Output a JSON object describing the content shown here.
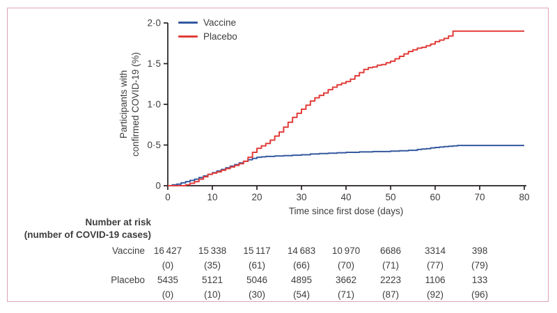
{
  "figure": {
    "border_color": "#dfa2b1",
    "background": "#ffffff",
    "axis_color": "#231f20",
    "text_color": "#3d3d3d"
  },
  "chart_data": {
    "type": "line",
    "subtype": "kaplan-meier-step",
    "title": "",
    "xlabel": "Time since first dose (days)",
    "ylabel_lines": [
      "Participants with",
      "confirmed COVID-19 (%)"
    ],
    "xlim": [
      0,
      80
    ],
    "ylim": [
      0,
      2.0
    ],
    "grid": false,
    "legend_position": "top-left-inside",
    "xticks": {
      "values": [
        0,
        10,
        20,
        30,
        40,
        50,
        60,
        70,
        80
      ],
      "labels": [
        "0",
        "10",
        "20",
        "30",
        "40",
        "50",
        "60",
        "70",
        "80"
      ]
    },
    "yticks": {
      "values": [
        0,
        0.5,
        1.0,
        1.5,
        2.0
      ],
      "labels": [
        "0",
        "0·5",
        "1·0",
        "1·5",
        "2·0"
      ]
    },
    "series": [
      {
        "name": "Vaccine",
        "color": "#33589e",
        "points": [
          [
            0,
            0
          ],
          [
            1,
            0.01
          ],
          [
            2,
            0.02
          ],
          [
            3,
            0.035
          ],
          [
            4,
            0.05
          ],
          [
            5,
            0.065
          ],
          [
            6,
            0.08
          ],
          [
            7,
            0.1
          ],
          [
            8,
            0.12
          ],
          [
            9,
            0.14
          ],
          [
            10,
            0.16
          ],
          [
            11,
            0.18
          ],
          [
            12,
            0.2
          ],
          [
            13,
            0.22
          ],
          [
            14,
            0.24
          ],
          [
            15,
            0.26
          ],
          [
            16,
            0.28
          ],
          [
            17,
            0.3
          ],
          [
            18,
            0.32
          ],
          [
            19,
            0.335
          ],
          [
            20,
            0.35
          ],
          [
            21,
            0.355
          ],
          [
            22,
            0.36
          ],
          [
            24,
            0.365
          ],
          [
            26,
            0.37
          ],
          [
            28,
            0.375
          ],
          [
            30,
            0.38
          ],
          [
            32,
            0.39
          ],
          [
            34,
            0.395
          ],
          [
            36,
            0.4
          ],
          [
            38,
            0.405
          ],
          [
            40,
            0.41
          ],
          [
            43,
            0.415
          ],
          [
            46,
            0.42
          ],
          [
            50,
            0.425
          ],
          [
            52,
            0.43
          ],
          [
            54,
            0.435
          ],
          [
            56,
            0.445
          ],
          [
            57,
            0.45
          ],
          [
            58,
            0.455
          ],
          [
            59,
            0.465
          ],
          [
            60,
            0.47
          ],
          [
            61,
            0.475
          ],
          [
            62,
            0.48
          ],
          [
            63,
            0.485
          ],
          [
            64,
            0.49
          ],
          [
            65,
            0.495
          ],
          [
            80,
            0.495
          ]
        ]
      },
      {
        "name": "Placebo",
        "color": "#e13c38",
        "points": [
          [
            0,
            0
          ],
          [
            4,
            0.01
          ],
          [
            5,
            0.03
          ],
          [
            6,
            0.05
          ],
          [
            7,
            0.08
          ],
          [
            8,
            0.11
          ],
          [
            9,
            0.14
          ],
          [
            10,
            0.155
          ],
          [
            11,
            0.17
          ],
          [
            12,
            0.19
          ],
          [
            13,
            0.21
          ],
          [
            14,
            0.23
          ],
          [
            15,
            0.25
          ],
          [
            16,
            0.27
          ],
          [
            17,
            0.3
          ],
          [
            18,
            0.35
          ],
          [
            19,
            0.41
          ],
          [
            20,
            0.46
          ],
          [
            21,
            0.49
          ],
          [
            22,
            0.52
          ],
          [
            23,
            0.56
          ],
          [
            24,
            0.61
          ],
          [
            25,
            0.66
          ],
          [
            26,
            0.72
          ],
          [
            27,
            0.78
          ],
          [
            28,
            0.84
          ],
          [
            29,
            0.89
          ],
          [
            30,
            0.94
          ],
          [
            31,
            0.99
          ],
          [
            32,
            1.04
          ],
          [
            33,
            1.08
          ],
          [
            34,
            1.11
          ],
          [
            35,
            1.14
          ],
          [
            36,
            1.18
          ],
          [
            37,
            1.21
          ],
          [
            38,
            1.24
          ],
          [
            39,
            1.26
          ],
          [
            40,
            1.28
          ],
          [
            41,
            1.31
          ],
          [
            42,
            1.35
          ],
          [
            43,
            1.39
          ],
          [
            44,
            1.43
          ],
          [
            45,
            1.45
          ],
          [
            46,
            1.46
          ],
          [
            47,
            1.48
          ],
          [
            48,
            1.49
          ],
          [
            49,
            1.51
          ],
          [
            50,
            1.53
          ],
          [
            51,
            1.56
          ],
          [
            52,
            1.59
          ],
          [
            53,
            1.62
          ],
          [
            54,
            1.65
          ],
          [
            55,
            1.67
          ],
          [
            56,
            1.69
          ],
          [
            57,
            1.7
          ],
          [
            58,
            1.72
          ],
          [
            59,
            1.74
          ],
          [
            60,
            1.77
          ],
          [
            61,
            1.79
          ],
          [
            62,
            1.81
          ],
          [
            63,
            1.84
          ],
          [
            64,
            1.9
          ],
          [
            80,
            1.9
          ]
        ]
      }
    ]
  },
  "risk_table": {
    "header_line1": "Number at risk",
    "header_line2": "(number of COVID-19 cases)",
    "time_points": [
      0,
      10,
      20,
      30,
      40,
      50,
      60,
      70
    ],
    "rows": [
      {
        "label": "Vaccine",
        "counts": [
          "16 427",
          "15 338",
          "15 117",
          "14 683",
          "10 970",
          "6686",
          "3314",
          "398"
        ],
        "cases": [
          "(0)",
          "(35)",
          "(61)",
          "(66)",
          "(70)",
          "(71)",
          "(77)",
          "(79)"
        ]
      },
      {
        "label": "Placebo",
        "counts": [
          "5435",
          "5121",
          "5046",
          "4895",
          "3662",
          "2223",
          "1106",
          "133"
        ],
        "cases": [
          "(0)",
          "(10)",
          "(30)",
          "(54)",
          "(71)",
          "(87)",
          "(92)",
          "(96)"
        ]
      }
    ]
  }
}
